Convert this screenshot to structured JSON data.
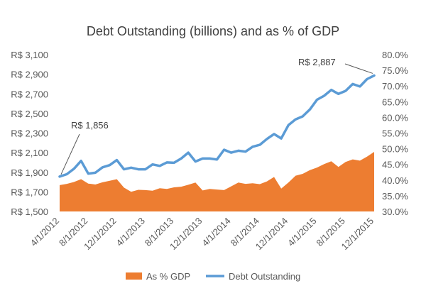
{
  "chart_data": {
    "type": "area+line",
    "title": "Debt Outstanding (billions) and as % of GDP",
    "x_labels": [
      "4/1/2012",
      "8/1/2012",
      "12/1/2012",
      "4/1/2013",
      "8/1/2013",
      "12/1/2013",
      "4/1/2014",
      "8/1/2014",
      "12/1/2014",
      "4/1/2015",
      "8/1/2015",
      "12/1/2015"
    ],
    "y_left": {
      "min": 1500,
      "max": 3100,
      "step": 200,
      "prefix": "R$ ",
      "ticks": [
        "R$ 1,500",
        "R$ 1,700",
        "R$ 1,900",
        "R$ 2,100",
        "R$ 2,300",
        "R$ 2,500",
        "R$ 2,700",
        "R$ 2,900",
        "R$ 3,100"
      ]
    },
    "y_right": {
      "min": 30,
      "max": 80,
      "step": 5,
      "ticks": [
        "30.0%",
        "35.0%",
        "40.0%",
        "45.0%",
        "50.0%",
        "55.0%",
        "60.0%",
        "65.0%",
        "70.0%",
        "75.0%",
        "80.0%"
      ]
    },
    "series": [
      {
        "name": "As % GDP",
        "type": "area",
        "axis": "right",
        "color": "#ED7D31",
        "start": "4/1/2012",
        "values": [
          38.4,
          38.8,
          39.4,
          40.3,
          38.9,
          38.6,
          39.3,
          39.8,
          40.3,
          37.6,
          36.3,
          36.9,
          36.8,
          36.6,
          37.4,
          37.2,
          37.7,
          37.9,
          38.5,
          39.2,
          36.7,
          37.2,
          37.0,
          36.8,
          38.0,
          39.2,
          38.8,
          39.0,
          38.7,
          39.6,
          41.0,
          37.3,
          39.2,
          41.4,
          42.0,
          43.2,
          44.0,
          45.1,
          46.0,
          44.2,
          45.8,
          46.6,
          46.2,
          47.5,
          49.0
        ]
      },
      {
        "name": "Debt Outstanding",
        "type": "line",
        "axis": "left",
        "color": "#5B9BD5",
        "start": "4/1/2012",
        "values": [
          1856,
          1880,
          1935,
          2016,
          1886,
          1895,
          1950,
          1973,
          2024,
          1930,
          1947,
          1930,
          1930,
          1980,
          1965,
          2000,
          1997,
          2040,
          2100,
          2010,
          2040,
          2040,
          2030,
          2130,
          2100,
          2120,
          2110,
          2160,
          2180,
          2240,
          2290,
          2245,
          2380,
          2440,
          2470,
          2540,
          2640,
          2680,
          2740,
          2700,
          2730,
          2800,
          2775,
          2850,
          2887
        ]
      }
    ],
    "annotations": [
      {
        "text": "R$ 1,856",
        "target_index": 0
      },
      {
        "text": "R$ 2,887",
        "target_index": 44
      }
    ],
    "legend": {
      "position": "bottom",
      "items": [
        "As % GDP",
        "Debt Outstanding"
      ]
    },
    "grid": false
  }
}
